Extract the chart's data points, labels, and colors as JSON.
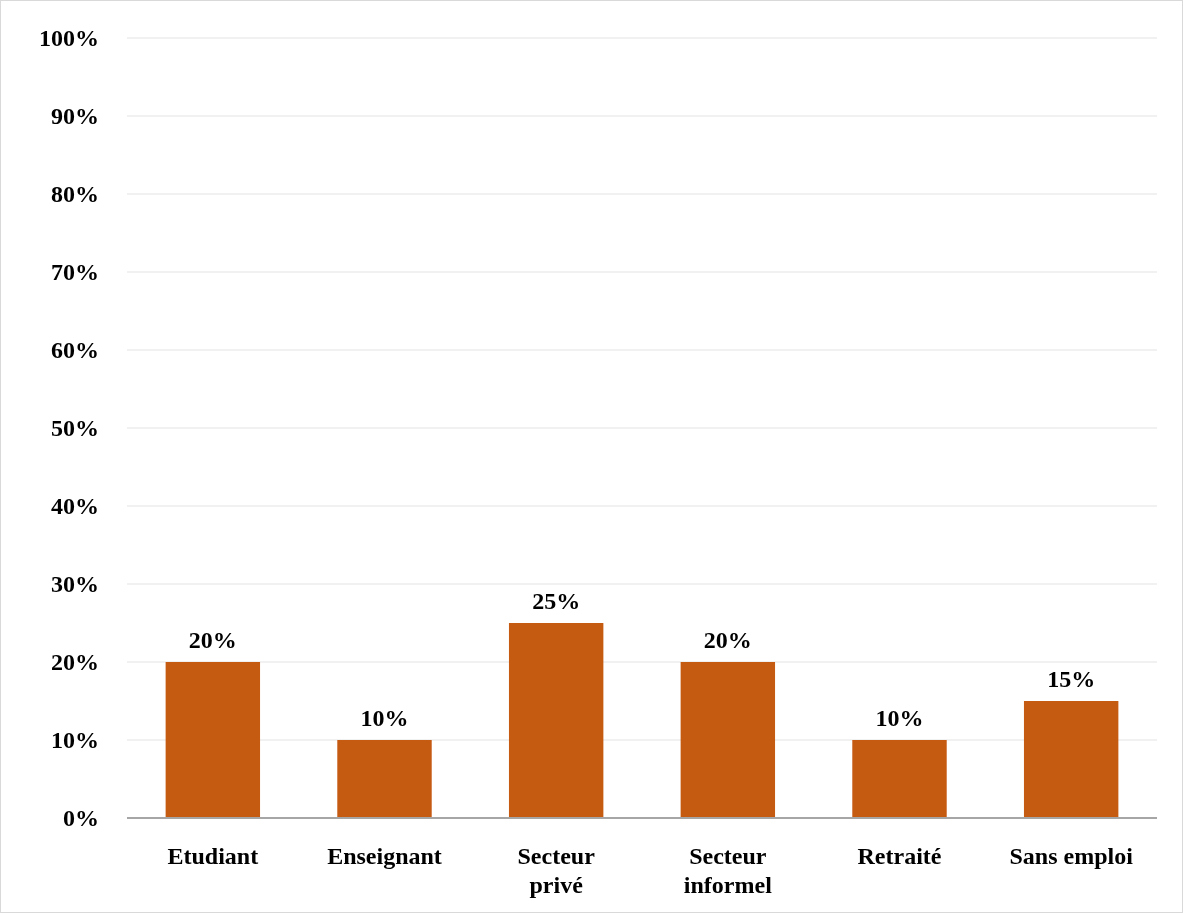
{
  "chart_data": {
    "type": "bar",
    "categories": [
      "Etudiant",
      "Enseignant",
      "Secteur privé",
      "Secteur informel",
      "Retraité",
      "Sans emploi"
    ],
    "values": [
      20,
      10,
      25,
      20,
      10,
      15
    ],
    "value_labels": [
      "20%",
      "10%",
      "25%",
      "20%",
      "10%",
      "15%"
    ],
    "color": "#c55a11",
    "ylim": [
      0,
      100
    ],
    "yticks": [
      {
        "value": 0,
        "label": "0%"
      },
      {
        "value": 10,
        "label": "10%"
      },
      {
        "value": 20,
        "label": "20%"
      },
      {
        "value": 30,
        "label": "30%"
      },
      {
        "value": 40,
        "label": "40%"
      },
      {
        "value": 50,
        "label": "50%"
      },
      {
        "value": 60,
        "label": "60%"
      },
      {
        "value": 70,
        "label": "70%"
      },
      {
        "value": 80,
        "label": "80%"
      },
      {
        "value": 90,
        "label": "90%"
      },
      {
        "value": 100,
        "label": "100%"
      }
    ],
    "grid": "y"
  }
}
